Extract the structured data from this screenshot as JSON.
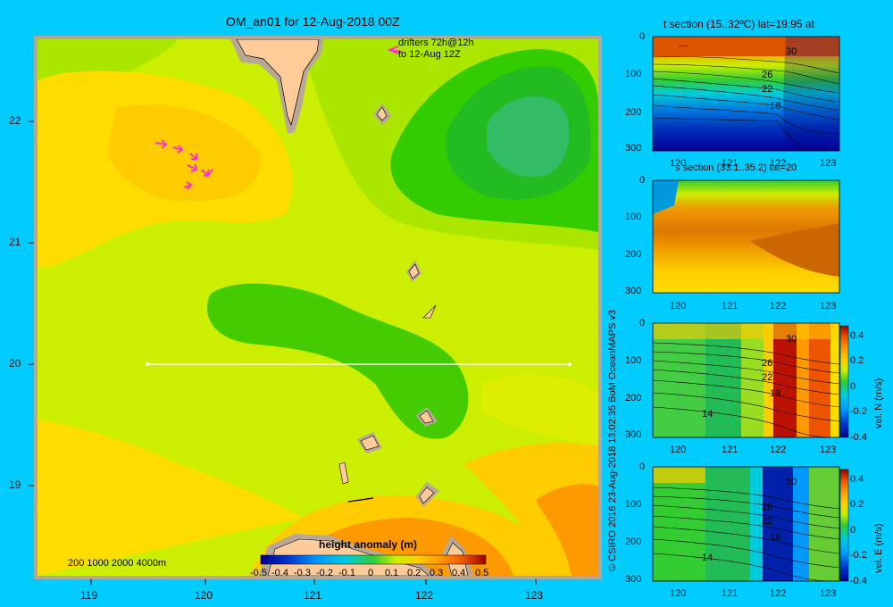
{
  "map": {
    "title": "OM_an01 for 12-Aug-2018 00Z",
    "x_ticks": [
      "119",
      "120",
      "121",
      "122",
      "123"
    ],
    "y_ticks": [
      "22",
      "21",
      "20",
      "19"
    ],
    "drifters_line1": "drifters 72h@12h",
    "drifters_line2": "to 12-Aug 12Z",
    "depth_legend": "200  1000  2000  4000m",
    "colorbar_label": "height anomaly (m)",
    "colorbar_ticks": [
      "-0.5",
      "-0.4",
      "-0.3",
      "-0.2",
      "-0.1",
      "0",
      "0.1",
      "0.2",
      "0.3",
      "0.4",
      "0.5"
    ],
    "section_lat": 20,
    "section_lon_range": [
      119.5,
      123.2
    ]
  },
  "credit": "© CSIRO 2016   23-Aug-2018 13:02:35 BoM OceanMAPS v3",
  "panels": {
    "t_section_title": "t section (15..32ºC) lat=19.95 at",
    "s_section_title": "s section (33.1..35.2) lat=20",
    "depth_ticks": [
      "0",
      "100",
      "200",
      "300"
    ],
    "lon_ticks": [
      "120",
      "121",
      "122",
      "123"
    ],
    "isotherm_labels_t": [
      "30",
      "26",
      "22",
      "18"
    ],
    "isotherm_labels_n": [
      "30",
      "26",
      "22",
      "18",
      "14"
    ],
    "isotherm_labels_e": [
      "30",
      "26",
      "22",
      "18",
      "14"
    ],
    "vel_ticks": [
      "0.4",
      "0.2",
      "0",
      "-0.2",
      "-0.4"
    ],
    "vel_n_label": "vel. N (m/s)",
    "vel_e_label": "vel. E (m/s)"
  },
  "colors": {
    "background": "#00ccff",
    "land": "#ffcc99",
    "shelf": "#b8a898",
    "frame": "#b0a898"
  }
}
